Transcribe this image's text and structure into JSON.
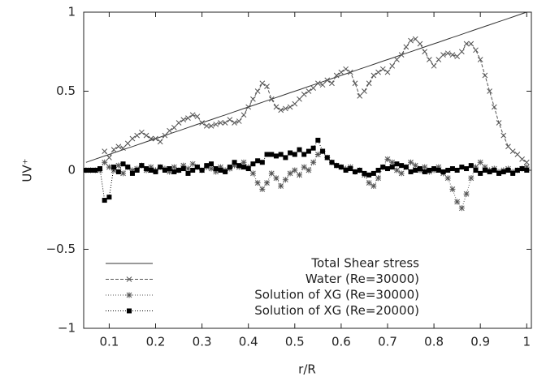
{
  "chart_data": {
    "type": "line",
    "x_label": "r/R",
    "y_label": "UV⁺",
    "xlim": [
      0.045,
      1.01
    ],
    "ylim": [
      -1,
      1
    ],
    "xticks": [
      0.1,
      0.2,
      0.3,
      0.4,
      0.5,
      0.6,
      0.7,
      0.8,
      0.9,
      1
    ],
    "yticks": [
      {
        "value": -1,
        "label": "−1"
      },
      {
        "value": -0.5,
        "label": "−0.5"
      },
      0,
      0.5,
      1
    ],
    "x": [
      0.05,
      0.06,
      0.07,
      0.08,
      0.09,
      0.1,
      0.11,
      0.12,
      0.13,
      0.14,
      0.15,
      0.16,
      0.17,
      0.18,
      0.19,
      0.2,
      0.21,
      0.22,
      0.23,
      0.24,
      0.25,
      0.26,
      0.27,
      0.28,
      0.29,
      0.3,
      0.31,
      0.32,
      0.33,
      0.34,
      0.35,
      0.36,
      0.37,
      0.38,
      0.39,
      0.4,
      0.41,
      0.42,
      0.43,
      0.44,
      0.45,
      0.46,
      0.47,
      0.48,
      0.49,
      0.5,
      0.51,
      0.52,
      0.53,
      0.54,
      0.55,
      0.56,
      0.57,
      0.58,
      0.59,
      0.6,
      0.61,
      0.62,
      0.63,
      0.64,
      0.65,
      0.66,
      0.67,
      0.68,
      0.69,
      0.7,
      0.71,
      0.72,
      0.73,
      0.74,
      0.75,
      0.76,
      0.77,
      0.78,
      0.79,
      0.8,
      0.81,
      0.82,
      0.83,
      0.84,
      0.85,
      0.86,
      0.87,
      0.88,
      0.89,
      0.9,
      0.91,
      0.92,
      0.93,
      0.94,
      0.95,
      0.96,
      0.97,
      0.98,
      0.99,
      1.0
    ],
    "series": [
      {
        "name": "Total Shear stress",
        "color": "#333333",
        "marker": "none",
        "dash": "solid",
        "values": [
          0.05,
          0.06,
          0.07,
          0.08,
          0.09,
          0.1,
          0.11,
          0.12,
          0.13,
          0.14,
          0.15,
          0.16,
          0.17,
          0.18,
          0.19,
          0.2,
          0.21,
          0.22,
          0.23,
          0.24,
          0.25,
          0.26,
          0.27,
          0.28,
          0.29,
          0.3,
          0.31,
          0.32,
          0.33,
          0.34,
          0.35,
          0.36,
          0.37,
          0.38,
          0.39,
          0.4,
          0.41,
          0.42,
          0.43,
          0.44,
          0.45,
          0.46,
          0.47,
          0.48,
          0.49,
          0.5,
          0.51,
          0.52,
          0.53,
          0.54,
          0.55,
          0.56,
          0.57,
          0.58,
          0.59,
          0.6,
          0.61,
          0.62,
          0.63,
          0.64,
          0.65,
          0.66,
          0.67,
          0.68,
          0.69,
          0.7,
          0.71,
          0.72,
          0.73,
          0.74,
          0.75,
          0.76,
          0.77,
          0.78,
          0.79,
          0.8,
          0.81,
          0.82,
          0.83,
          0.84,
          0.85,
          0.86,
          0.87,
          0.88,
          0.89,
          0.9,
          0.91,
          0.92,
          0.93,
          0.94,
          0.95,
          0.96,
          0.97,
          0.98,
          0.99,
          1.0
        ]
      },
      {
        "name": "Water (Re=30000)",
        "color": "#555555",
        "marker": "cross",
        "dash": "dashed",
        "values": [
          null,
          null,
          null,
          null,
          0.12,
          0.08,
          0.13,
          0.15,
          0.14,
          0.17,
          0.2,
          0.22,
          0.24,
          0.22,
          0.2,
          0.2,
          0.18,
          0.22,
          0.25,
          0.27,
          0.3,
          0.32,
          0.33,
          0.35,
          0.34,
          0.3,
          0.28,
          0.28,
          0.29,
          0.3,
          0.3,
          0.32,
          0.3,
          0.31,
          0.35,
          0.4,
          0.45,
          0.5,
          0.55,
          0.53,
          0.45,
          0.4,
          0.38,
          0.39,
          0.4,
          0.42,
          0.45,
          0.48,
          0.5,
          0.52,
          0.55,
          0.54,
          0.57,
          0.55,
          0.6,
          0.62,
          0.64,
          0.62,
          0.55,
          0.47,
          0.5,
          0.55,
          0.6,
          0.62,
          0.64,
          0.62,
          0.66,
          0.7,
          0.73,
          0.78,
          0.82,
          0.83,
          0.8,
          0.75,
          0.7,
          0.66,
          0.7,
          0.73,
          0.74,
          0.73,
          0.72,
          0.75,
          0.8,
          0.8,
          0.76,
          0.7,
          0.6,
          0.5,
          0.4,
          0.3,
          0.22,
          0.15,
          0.12,
          0.1,
          0.07,
          0.05
        ]
      },
      {
        "name": "Solution of XG (Re=30000)",
        "color": "#555555",
        "marker": "star",
        "dash": "dotted",
        "values": [
          0,
          0,
          0,
          0,
          0.05,
          0.02,
          0,
          0.03,
          -0.02,
          0.02,
          0,
          0.01,
          0.03,
          0,
          0.02,
          0,
          0.02,
          0.01,
          -0.01,
          0.02,
          0,
          0.03,
          0.01,
          0.04,
          0.02,
          0,
          0.02,
          0.01,
          -0.01,
          0.02,
          0,
          0.01,
          0.03,
          0.02,
          0.05,
          0.02,
          -0.02,
          -0.08,
          -0.12,
          -0.08,
          -0.02,
          -0.05,
          -0.1,
          -0.06,
          -0.02,
          0,
          -0.03,
          0.02,
          0,
          0.05,
          0.1,
          0.12,
          0.08,
          0.05,
          0.03,
          0.02,
          0.01,
          0.02,
          -0.01,
          0,
          -0.03,
          -0.08,
          -0.1,
          -0.05,
          0.02,
          0.07,
          0.05,
          0,
          -0.02,
          0.02,
          0.05,
          0.03,
          0,
          0.02,
          -0.01,
          0,
          0.02,
          -0.02,
          -0.05,
          -0.12,
          -0.2,
          -0.24,
          -0.15,
          -0.05,
          0.02,
          0.05,
          0.02,
          0,
          0.01,
          -0.01,
          0,
          0.01,
          -0.01,
          0,
          0.01,
          0.02
        ]
      },
      {
        "name": "Solution of XG (Re=20000)",
        "color": "#000000",
        "marker": "square",
        "dash": "dotted",
        "values": [
          0,
          0,
          0,
          0.01,
          -0.19,
          -0.17,
          0.02,
          -0.01,
          0.04,
          0.02,
          -0.02,
          0,
          0.03,
          0.01,
          0,
          -0.01,
          0.02,
          0,
          0.01,
          -0.01,
          0,
          0.01,
          -0.02,
          0,
          0.02,
          0,
          0.03,
          0.04,
          0.01,
          0,
          -0.01,
          0.02,
          0.05,
          0.03,
          0.02,
          0.01,
          0.04,
          0.06,
          0.05,
          0.1,
          0.1,
          0.09,
          0.1,
          0.08,
          0.11,
          0.1,
          0.13,
          0.1,
          0.12,
          0.14,
          0.19,
          0.12,
          0.08,
          0.05,
          0.03,
          0.02,
          0,
          0.01,
          -0.01,
          0,
          -0.02,
          -0.03,
          -0.02,
          0,
          0.02,
          0.01,
          0.02,
          0.04,
          0.03,
          0.02,
          -0.01,
          0,
          0.01,
          -0.01,
          0,
          0.01,
          0,
          -0.01,
          0,
          0.01,
          0,
          0.02,
          0.01,
          0.03,
          0,
          -0.02,
          0,
          -0.01,
          0,
          -0.02,
          -0.01,
          0,
          -0.02,
          0,
          0.01,
          0
        ]
      }
    ]
  }
}
